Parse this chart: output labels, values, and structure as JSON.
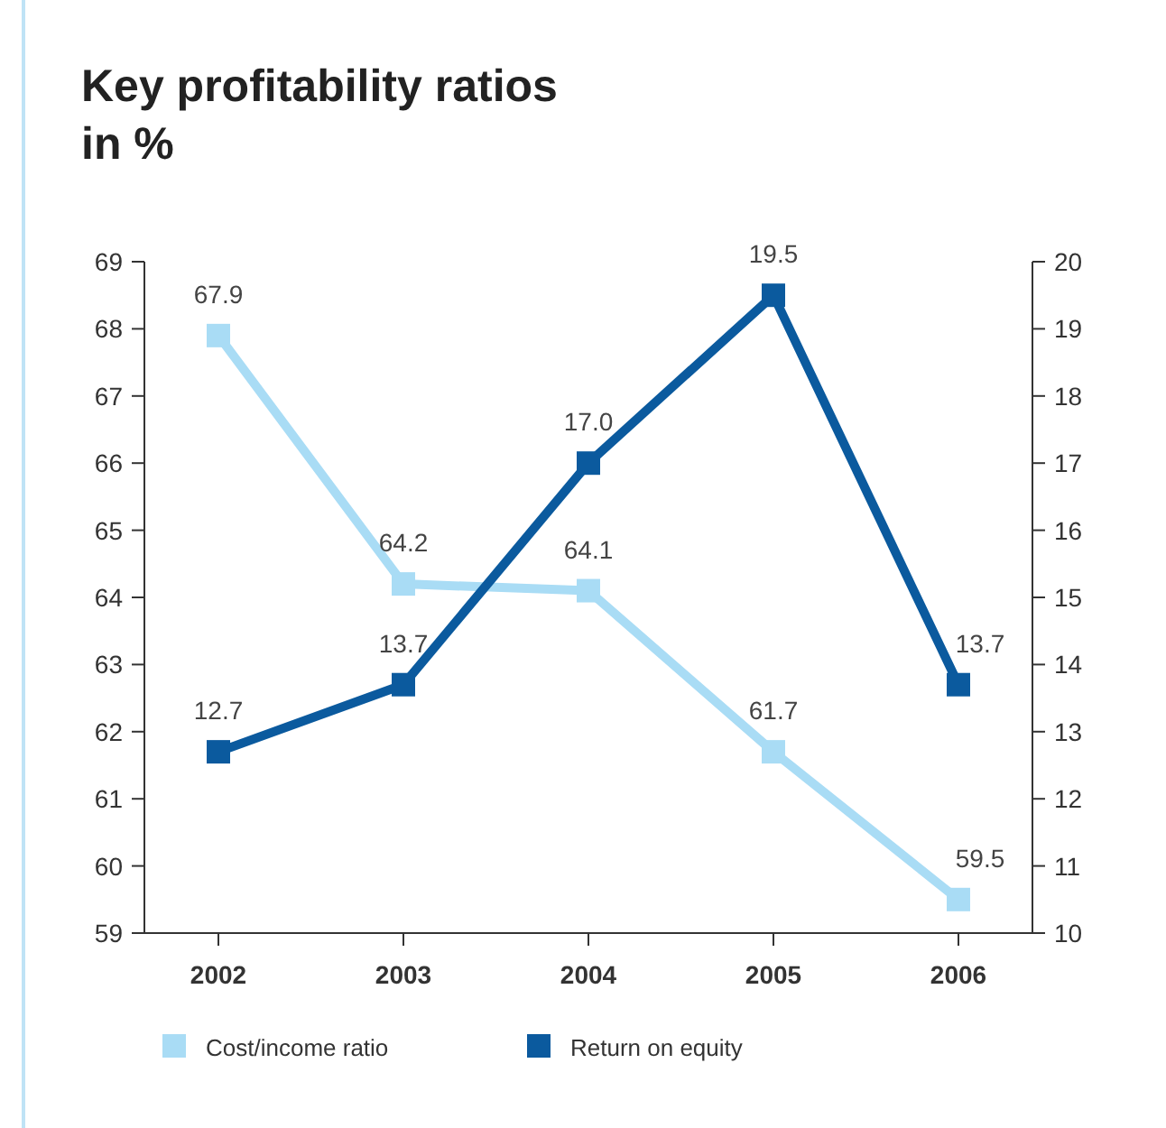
{
  "chart_data": {
    "type": "line",
    "title": "Key profitability ratios\nin %",
    "categories": [
      "2002",
      "2003",
      "2004",
      "2005",
      "2006"
    ],
    "series": [
      {
        "name": "Cost/income ratio",
        "color": "#a9dcf5",
        "values": [
          67.9,
          64.2,
          64.1,
          61.7,
          59.5
        ],
        "value_labels": [
          "67.9",
          "64.2",
          "64.1",
          "61.7",
          "59.5"
        ]
      },
      {
        "name": "Return on equity",
        "color": "#0b5a9e",
        "values": [
          12.7,
          13.7,
          17.0,
          19.5,
          13.7
        ],
        "axis": "y2",
        "value_labels": [
          "12.7",
          "13.7",
          "17.0",
          "19.5",
          "13.7"
        ]
      }
    ],
    "ylim": [
      59,
      69
    ],
    "yticks": [
      59,
      60,
      61,
      62,
      63,
      64,
      65,
      66,
      67,
      68,
      69
    ],
    "y2lim": [
      10,
      20
    ],
    "y2ticks": [
      10,
      11,
      12,
      13,
      14,
      15,
      16,
      17,
      18,
      19,
      20
    ],
    "marker": "square",
    "line_style": "solid",
    "legend": "bottom left",
    "grid": false
  }
}
